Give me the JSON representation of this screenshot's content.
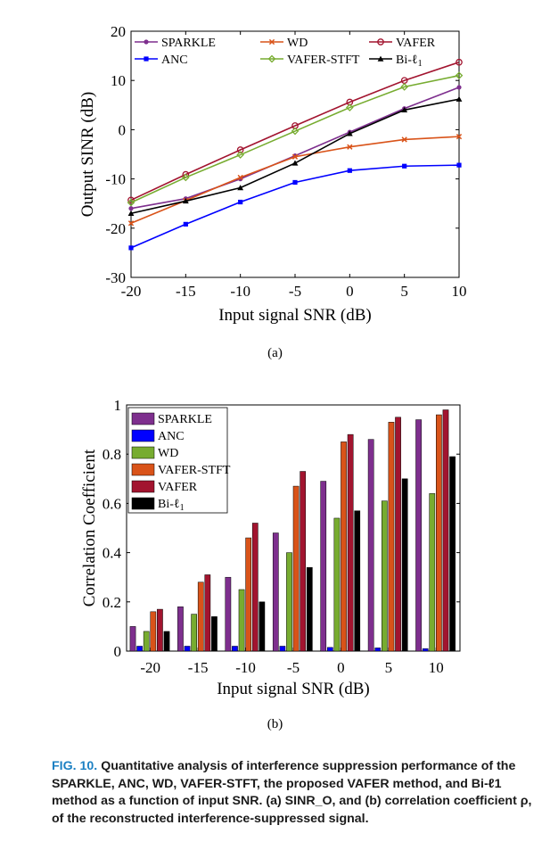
{
  "chart_data": [
    {
      "type": "line",
      "id": "a",
      "xlabel": "Input signal SNR (dB)",
      "ylabel": "Output SINR (dB)",
      "x": [
        -20,
        -15,
        -10,
        -5,
        0,
        5,
        10
      ],
      "xlim": [
        -20,
        10
      ],
      "ylim": [
        -30,
        20
      ],
      "xticks": [
        -20,
        -15,
        -10,
        -5,
        0,
        5,
        10
      ],
      "yticks": [
        -30,
        -20,
        -10,
        0,
        10,
        20
      ],
      "legend_position": "top",
      "series": [
        {
          "name": "SPARKLE",
          "color": "#7e2f8e",
          "marker": "dot",
          "values": [
            -16.0,
            -14.0,
            -10.0,
            -5.3,
            -0.5,
            4.3,
            8.6
          ]
        },
        {
          "name": "WD",
          "color": "#d95319",
          "marker": "x",
          "values": [
            -19.0,
            -14.4,
            -9.7,
            -5.5,
            -3.5,
            -2.0,
            -1.4
          ]
        },
        {
          "name": "VAFER",
          "color": "#a2142f",
          "marker": "circle",
          "values": [
            -14.3,
            -9.1,
            -4.1,
            0.8,
            5.6,
            10.0,
            13.7
          ]
        },
        {
          "name": "ANC",
          "color": "#0000ff",
          "marker": "square",
          "values": [
            -24.0,
            -19.2,
            -14.7,
            -10.7,
            -8.3,
            -7.4,
            -7.2
          ]
        },
        {
          "name": "VAFER-STFT",
          "color": "#77ac30",
          "marker": "diamond",
          "values": [
            -14.8,
            -9.7,
            -5.1,
            -0.3,
            4.5,
            8.7,
            11.0
          ]
        },
        {
          "name": "Bi-ℓ1",
          "color": "#000000",
          "marker": "triangle",
          "values": [
            -17.0,
            -14.5,
            -11.8,
            -6.8,
            -0.8,
            4.0,
            6.2
          ]
        }
      ]
    },
    {
      "type": "bar",
      "id": "b",
      "xlabel": "Input signal SNR (dB)",
      "ylabel": "Correlation Coefficient",
      "categories": [
        "-20",
        "-15",
        "-10",
        "-5",
        "0",
        "5",
        "10"
      ],
      "ylim": [
        0,
        1
      ],
      "yticks": [
        "0",
        "0.2",
        "0.4",
        "0.6",
        "0.8",
        "1"
      ],
      "legend_position": "top-left",
      "series": [
        {
          "name": "SPARKLE",
          "color": "#7e2f8e",
          "values": [
            0.1,
            0.18,
            0.3,
            0.48,
            0.69,
            0.86,
            0.94
          ]
        },
        {
          "name": "ANC",
          "color": "#0000ff",
          "values": [
            0.02,
            0.02,
            0.02,
            0.02,
            0.015,
            0.013,
            0.01
          ]
        },
        {
          "name": "WD",
          "color": "#77ac30",
          "values": [
            0.08,
            0.15,
            0.25,
            0.4,
            0.54,
            0.61,
            0.64
          ]
        },
        {
          "name": "VAFER-STFT",
          "color": "#d95319",
          "values": [
            0.16,
            0.28,
            0.46,
            0.67,
            0.85,
            0.93,
            0.96
          ]
        },
        {
          "name": "VAFER",
          "color": "#a2142f",
          "values": [
            0.17,
            0.31,
            0.52,
            0.73,
            0.88,
            0.95,
            0.98
          ]
        },
        {
          "name": "Bi-ℓ1",
          "color": "#000000",
          "values": [
            0.08,
            0.14,
            0.2,
            0.34,
            0.57,
            0.7,
            0.79
          ]
        }
      ]
    }
  ],
  "subfig_labels": {
    "a": "(a)",
    "b": "(b)"
  },
  "caption": {
    "figno": "FIG. 10.",
    "text": "Quantitative analysis of interference suppression performance of the SPARKLE, ANC, WD, VAFER-STFT, the proposed VAFER method, and Bi-ℓ1 method as a function of input SNR. (a) SINR_O, and (b) correlation coefficient ρ, of the reconstructed interference-suppressed signal."
  }
}
